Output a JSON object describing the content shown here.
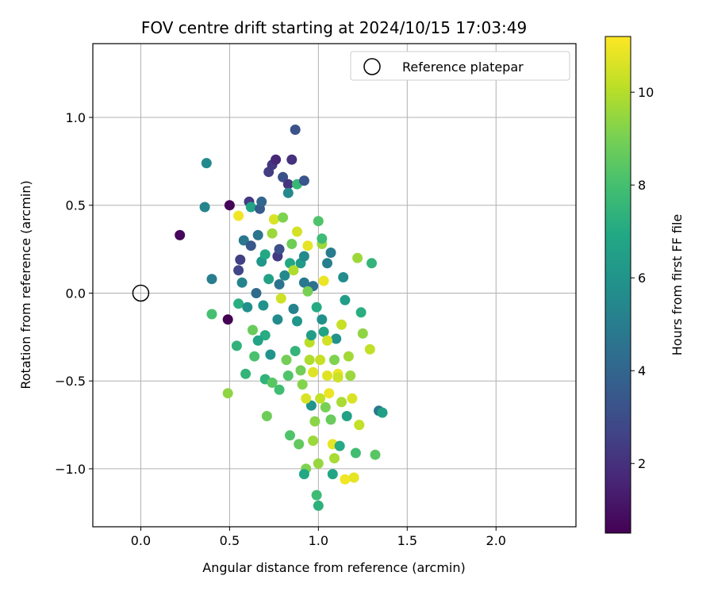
{
  "chart_data": {
    "type": "scatter",
    "title": "FOV centre drift starting at 2024/10/15 17:03:49",
    "xlabel": "Angular distance from reference (arcmin)",
    "ylabel": "Rotation from reference (arcmin)",
    "xlim": [
      -0.27,
      2.45
    ],
    "ylim": [
      -1.33,
      1.42
    ],
    "xticks": [
      0.0,
      0.5,
      1.0,
      1.5,
      2.0
    ],
    "xtick_labels": [
      "0.0",
      "0.5",
      "1.0",
      "1.5",
      "2.0"
    ],
    "yticks": [
      1.0,
      0.5,
      0.0,
      -0.5,
      -1.0
    ],
    "ytick_labels": [
      "1.0",
      "0.5",
      "0.0",
      "−0.5",
      "−1.0"
    ],
    "grid": true,
    "legend": {
      "placement": "top-right",
      "entries": [
        "Reference platepar"
      ]
    },
    "reference_point": {
      "x": 0.0,
      "y": 0.0
    },
    "colorbar": {
      "label": "Hours from first FF file",
      "range": [
        0.5,
        11.2
      ],
      "ticks": [
        2,
        4,
        6,
        8,
        10
      ],
      "tick_labels": [
        "2",
        "4",
        "6",
        "8",
        "10"
      ],
      "colormap": "viridis"
    },
    "points": [
      {
        "x": 0.22,
        "y": 0.33,
        "h": 0.7
      },
      {
        "x": 0.37,
        "y": 0.74,
        "h": 5.5
      },
      {
        "x": 0.36,
        "y": 0.49,
        "h": 5.3
      },
      {
        "x": 0.4,
        "y": 0.08,
        "h": 5.0
      },
      {
        "x": 0.4,
        "y": -0.12,
        "h": 8.0
      },
      {
        "x": 0.49,
        "y": -0.15,
        "h": 0.5
      },
      {
        "x": 0.5,
        "y": 0.5,
        "h": 0.6
      },
      {
        "x": 0.55,
        "y": 0.44,
        "h": 11.0
      },
      {
        "x": 0.49,
        "y": -0.57,
        "h": 9.4
      },
      {
        "x": 0.54,
        "y": -0.3,
        "h": 7.4
      },
      {
        "x": 0.55,
        "y": -0.06,
        "h": 7.2
      },
      {
        "x": 0.55,
        "y": 0.13,
        "h": 2.7
      },
      {
        "x": 0.56,
        "y": 0.19,
        "h": 2.5
      },
      {
        "x": 0.57,
        "y": 0.06,
        "h": 5.3
      },
      {
        "x": 0.58,
        "y": 0.3,
        "h": 4.8
      },
      {
        "x": 0.59,
        "y": -0.46,
        "h": 7.5
      },
      {
        "x": 0.6,
        "y": -0.08,
        "h": 5.8
      },
      {
        "x": 0.61,
        "y": 0.52,
        "h": 2.3
      },
      {
        "x": 0.62,
        "y": 0.49,
        "h": 6.8
      },
      {
        "x": 0.62,
        "y": 0.27,
        "h": 3.4
      },
      {
        "x": 0.63,
        "y": -0.21,
        "h": 8.7
      },
      {
        "x": 0.64,
        "y": -0.36,
        "h": 8.1
      },
      {
        "x": 0.65,
        "y": 0.0,
        "h": 4.2
      },
      {
        "x": 0.66,
        "y": 0.33,
        "h": 4.7
      },
      {
        "x": 0.67,
        "y": 0.48,
        "h": 3.6
      },
      {
        "x": 0.68,
        "y": 0.52,
        "h": 4.0
      },
      {
        "x": 0.68,
        "y": 0.18,
        "h": 6.1
      },
      {
        "x": 0.69,
        "y": -0.07,
        "h": 5.9
      },
      {
        "x": 0.7,
        "y": -0.24,
        "h": 7.1
      },
      {
        "x": 0.7,
        "y": -0.49,
        "h": 7.4
      },
      {
        "x": 0.71,
        "y": -0.7,
        "h": 8.8
      },
      {
        "x": 0.72,
        "y": 0.08,
        "h": 6.6
      },
      {
        "x": 0.72,
        "y": 0.69,
        "h": 2.4
      },
      {
        "x": 0.74,
        "y": 0.73,
        "h": 2.2
      },
      {
        "x": 0.73,
        "y": -0.35,
        "h": 6.0
      },
      {
        "x": 0.74,
        "y": 0.34,
        "h": 9.6
      },
      {
        "x": 0.75,
        "y": 0.42,
        "h": 10.6
      },
      {
        "x": 0.76,
        "y": 0.76,
        "h": 1.7
      },
      {
        "x": 0.77,
        "y": 0.21,
        "h": 2.3
      },
      {
        "x": 0.77,
        "y": -0.15,
        "h": 5.6
      },
      {
        "x": 0.78,
        "y": -0.55,
        "h": 7.9
      },
      {
        "x": 0.78,
        "y": 0.25,
        "h": 3.1
      },
      {
        "x": 0.79,
        "y": -0.03,
        "h": 10.4
      },
      {
        "x": 0.8,
        "y": 0.66,
        "h": 3.1
      },
      {
        "x": 0.8,
        "y": 0.43,
        "h": 9.1
      },
      {
        "x": 0.81,
        "y": 0.1,
        "h": 5.5
      },
      {
        "x": 0.82,
        "y": -0.38,
        "h": 8.9
      },
      {
        "x": 0.83,
        "y": 0.62,
        "h": 2.1
      },
      {
        "x": 0.83,
        "y": 0.57,
        "h": 5.5
      },
      {
        "x": 0.84,
        "y": -0.81,
        "h": 8.2
      },
      {
        "x": 0.85,
        "y": 0.76,
        "h": 2.0
      },
      {
        "x": 0.85,
        "y": 0.28,
        "h": 8.8
      },
      {
        "x": 0.86,
        "y": -0.09,
        "h": 5.2
      },
      {
        "x": 0.87,
        "y": 0.93,
        "h": 3.2
      },
      {
        "x": 0.88,
        "y": 0.35,
        "h": 10.5
      },
      {
        "x": 0.88,
        "y": 0.62,
        "h": 7.6
      },
      {
        "x": 0.89,
        "y": -0.86,
        "h": 8.6
      },
      {
        "x": 0.9,
        "y": 0.17,
        "h": 6.3
      },
      {
        "x": 0.91,
        "y": -0.52,
        "h": 9.2
      },
      {
        "x": 0.92,
        "y": 0.64,
        "h": 3.3
      },
      {
        "x": 0.92,
        "y": 0.06,
        "h": 4.8
      },
      {
        "x": 0.93,
        "y": -1.0,
        "h": 9.1
      },
      {
        "x": 0.92,
        "y": -1.03,
        "h": 6.9
      },
      {
        "x": 0.94,
        "y": 0.27,
        "h": 10.8
      },
      {
        "x": 0.95,
        "y": -0.28,
        "h": 10.1
      },
      {
        "x": 0.96,
        "y": -0.64,
        "h": 6.0
      },
      {
        "x": 0.97,
        "y": 0.04,
        "h": 4.5
      },
      {
        "x": 0.98,
        "y": -0.73,
        "h": 9.3
      },
      {
        "x": 0.99,
        "y": -1.15,
        "h": 7.8
      },
      {
        "x": 1.0,
        "y": -1.21,
        "h": 7.3
      },
      {
        "x": 1.0,
        "y": 0.41,
        "h": 8.2
      },
      {
        "x": 1.01,
        "y": -0.38,
        "h": 10.3
      },
      {
        "x": 1.02,
        "y": 0.28,
        "h": 9.6
      },
      {
        "x": 1.03,
        "y": -0.22,
        "h": 6.7
      },
      {
        "x": 1.04,
        "y": -0.65,
        "h": 9.0
      },
      {
        "x": 1.05,
        "y": -0.47,
        "h": 10.7
      },
      {
        "x": 1.06,
        "y": -0.57,
        "h": 10.9
      },
      {
        "x": 1.07,
        "y": 0.23,
        "h": 4.9
      },
      {
        "x": 1.08,
        "y": -0.86,
        "h": 10.8
      },
      {
        "x": 1.08,
        "y": -1.03,
        "h": 6.8
      },
      {
        "x": 1.09,
        "y": -0.94,
        "h": 9.8
      },
      {
        "x": 1.1,
        "y": -0.26,
        "h": 5.9
      },
      {
        "x": 1.11,
        "y": -0.46,
        "h": 10.9
      },
      {
        "x": 1.12,
        "y": -0.87,
        "h": 7.0
      },
      {
        "x": 1.13,
        "y": -0.18,
        "h": 10.3
      },
      {
        "x": 1.14,
        "y": 0.09,
        "h": 5.7
      },
      {
        "x": 1.15,
        "y": -0.04,
        "h": 6.4
      },
      {
        "x": 1.15,
        "y": -1.06,
        "h": 11.0
      },
      {
        "x": 1.16,
        "y": -0.7,
        "h": 6.6
      },
      {
        "x": 1.17,
        "y": -0.36,
        "h": 9.7
      },
      {
        "x": 1.18,
        "y": -0.47,
        "h": 9.6
      },
      {
        "x": 1.19,
        "y": -0.6,
        "h": 10.6
      },
      {
        "x": 1.2,
        "y": -1.05,
        "h": 10.8
      },
      {
        "x": 1.21,
        "y": -0.91,
        "h": 7.9
      },
      {
        "x": 1.22,
        "y": 0.2,
        "h": 9.6
      },
      {
        "x": 1.23,
        "y": -0.75,
        "h": 10.2
      },
      {
        "x": 1.24,
        "y": -0.11,
        "h": 7.2
      },
      {
        "x": 1.25,
        "y": -0.23,
        "h": 9.4
      },
      {
        "x": 1.29,
        "y": -0.32,
        "h": 10.2
      },
      {
        "x": 1.3,
        "y": 0.17,
        "h": 7.5
      },
      {
        "x": 1.32,
        "y": -0.92,
        "h": 8.4
      },
      {
        "x": 1.34,
        "y": -0.67,
        "h": 4.8
      },
      {
        "x": 1.36,
        "y": -0.68,
        "h": 6.5
      },
      {
        "x": 1.02,
        "y": 0.31,
        "h": 7.8
      },
      {
        "x": 0.96,
        "y": -0.24,
        "h": 6.4
      },
      {
        "x": 0.78,
        "y": 0.05,
        "h": 4.6
      },
      {
        "x": 0.87,
        "y": -0.33,
        "h": 7.5
      },
      {
        "x": 1.07,
        "y": -0.72,
        "h": 8.7
      },
      {
        "x": 0.93,
        "y": -0.6,
        "h": 10.6
      },
      {
        "x": 1.11,
        "y": -0.48,
        "h": 10.4
      },
      {
        "x": 1.0,
        "y": -0.97,
        "h": 9.5
      },
      {
        "x": 1.03,
        "y": 0.07,
        "h": 10.9
      },
      {
        "x": 0.84,
        "y": 0.17,
        "h": 6.9
      },
      {
        "x": 0.92,
        "y": 0.21,
        "h": 5.6
      },
      {
        "x": 0.99,
        "y": -0.08,
        "h": 7.0
      },
      {
        "x": 0.9,
        "y": -0.44,
        "h": 8.9
      },
      {
        "x": 1.05,
        "y": -0.27,
        "h": 10.5
      },
      {
        "x": 0.95,
        "y": -0.38,
        "h": 9.9
      },
      {
        "x": 0.97,
        "y": -0.84,
        "h": 9.6
      },
      {
        "x": 1.01,
        "y": -0.6,
        "h": 10.2
      },
      {
        "x": 0.88,
        "y": -0.16,
        "h": 6.1
      },
      {
        "x": 0.83,
        "y": -0.47,
        "h": 8.2
      },
      {
        "x": 1.02,
        "y": -0.15,
        "h": 5.8
      },
      {
        "x": 1.09,
        "y": -0.38,
        "h": 9.1
      },
      {
        "x": 0.7,
        "y": 0.22,
        "h": 6.9
      },
      {
        "x": 0.86,
        "y": 0.13,
        "h": 9.9
      },
      {
        "x": 0.97,
        "y": -0.45,
        "h": 10.7
      },
      {
        "x": 1.13,
        "y": -0.62,
        "h": 9.8
      },
      {
        "x": 0.74,
        "y": -0.51,
        "h": 8.4
      },
      {
        "x": 0.66,
        "y": -0.27,
        "h": 6.7
      },
      {
        "x": 1.05,
        "y": 0.17,
        "h": 5.1
      },
      {
        "x": 0.94,
        "y": 0.01,
        "h": 9.0
      }
    ]
  }
}
